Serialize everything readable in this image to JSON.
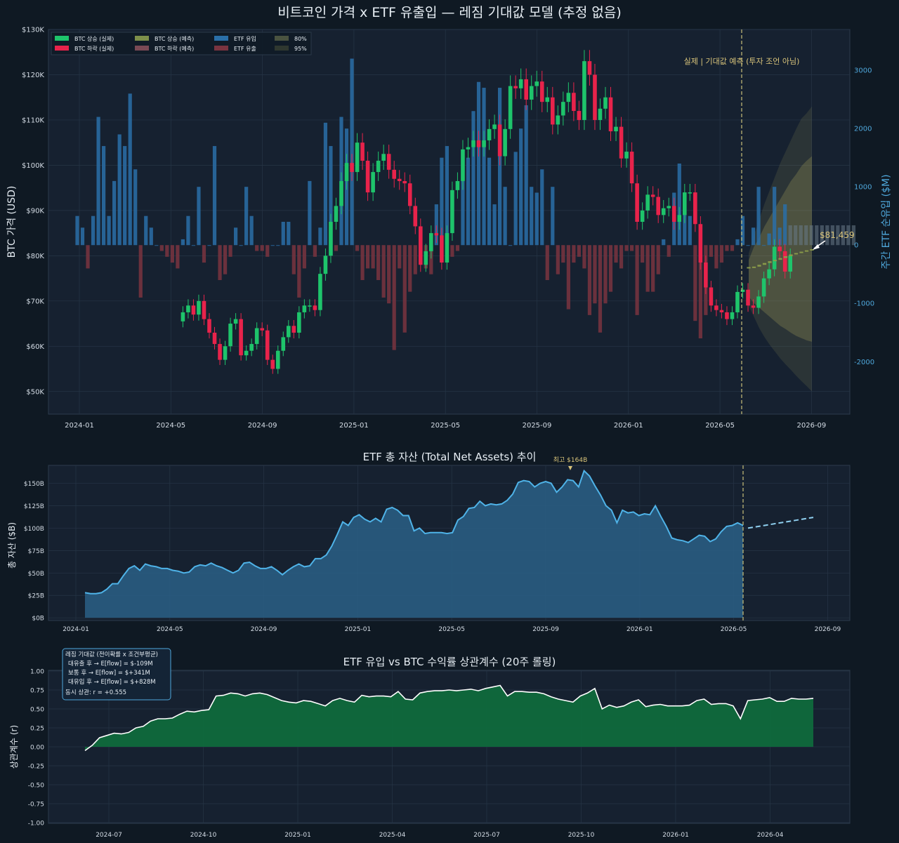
{
  "title": "비트코인 가격 x ETF 유출입 — 레짐 기대값 모델 (추정 없음)",
  "colors": {
    "background": "#0f1923",
    "panel": "#162130",
    "grid": "#263546",
    "up": "#1ec46b",
    "down": "#e8234b",
    "inflow": "#2a6fa8",
    "outflow": "#7a3440",
    "forecast": "#c9c064",
    "tna_line": "#4fb3e8",
    "tna_fill": "#2a5f86",
    "corr_fill": "#0f6a3c"
  },
  "chart_data": [
    {
      "type": "candlestick+bar",
      "ylabel": "BTC 가격 (USD)",
      "y2label": "주간 ETF 순유입 ($M)",
      "ylim": [
        45000,
        130000
      ],
      "y2lim": [
        -2900,
        3700
      ],
      "yticks": [
        "$50K",
        "$60K",
        "$70K",
        "$80K",
        "$90K",
        "$100K",
        "$110K",
        "$120K",
        "$130K"
      ],
      "y2ticks": [
        "-2000",
        "-1000",
        "0",
        "1000",
        "2000",
        "3000"
      ],
      "xticks": [
        "2024-01",
        "2024-05",
        "2024-09",
        "2025-01",
        "2025-05",
        "2025-09",
        "2026-01",
        "2026-05",
        "2026-09"
      ],
      "legend": {
        "position": "top-left",
        "items": [
          "BTC 상승 (실제)",
          "BTC 상승 (예측)",
          "ETF 유입",
          "80%",
          "BTC 하락 (실제)",
          "BTC 하락 (예측)",
          "ETF 유출",
          "95%"
        ]
      },
      "annotation": "실제 | 기대값 예측 (투자 조언 아님)",
      "forecast_end_label": "$81,459",
      "flows": [
        500,
        300,
        -400,
        500,
        2200,
        1700,
        500,
        1100,
        1900,
        1700,
        2600,
        1300,
        -900,
        500,
        300,
        0,
        -100,
        -200,
        -300,
        -400,
        100,
        500,
        0,
        1000,
        -300,
        0,
        1700,
        -600,
        -500,
        -200,
        300,
        0,
        1000,
        500,
        -100,
        -100,
        -200,
        0,
        0,
        400,
        400,
        -500,
        -900,
        -400,
        1100,
        -200,
        300,
        2100,
        1700,
        -100,
        2200,
        2000,
        3200,
        -100,
        -600,
        -400,
        -400,
        -600,
        -900,
        -1000,
        -1800,
        -400,
        -1500,
        -800,
        -500,
        200,
        -400,
        -500,
        700,
        1500,
        1700,
        -200,
        -100,
        1100,
        1500,
        2300,
        2800,
        2700,
        1500,
        700,
        2700,
        1000,
        0,
        1600,
        2000,
        2400,
        1000,
        900,
        1300,
        -600,
        1000,
        -500,
        -300,
        -1100,
        -300,
        -200,
        -400,
        -1200,
        -1000,
        -1500,
        -1000,
        -800,
        -300,
        -400,
        -100,
        -100,
        -1200,
        -300,
        -800,
        -800,
        -500,
        100,
        -200,
        900,
        1400,
        600,
        500,
        -1300,
        -1600,
        -1200,
        -200,
        -400,
        -300,
        -100,
        -100,
        100,
        500,
        0,
        300,
        1000,
        0,
        200,
        1000,
        300,
        700
      ],
      "candles_start_week": 20,
      "candles": [
        65500,
        67500,
        69000,
        67000,
        70000,
        66000,
        63000,
        60500,
        57000,
        60000,
        65000,
        66000,
        58000,
        59000,
        60500,
        64000,
        63500,
        57000,
        55000,
        59000,
        62000,
        64500,
        63000,
        67500,
        69000,
        69000,
        68000,
        76000,
        80000,
        87500,
        91000,
        96500,
        100500,
        98500,
        105000,
        101000,
        94000,
        98500,
        101000,
        102500,
        99000,
        97000,
        96500,
        96000,
        91000,
        86500,
        78000,
        81000,
        85000,
        84500,
        78500,
        85000,
        94500,
        96500,
        103500,
        104000,
        105500,
        104000,
        105500,
        108000,
        109000,
        102000,
        108000,
        117500,
        117000,
        119000,
        114500,
        117500,
        118500,
        114000,
        115000,
        109000,
        111000,
        114000,
        116000,
        112000,
        110000,
        123000,
        120000,
        110000,
        112500,
        115000,
        107500,
        108500,
        101500,
        103000,
        96000,
        87500,
        90000,
        93500,
        93000,
        89000,
        90500,
        91000,
        87500,
        89000,
        94000,
        94000,
        87000,
        78500,
        73000,
        69000,
        68000,
        67500,
        66000,
        67500,
        72000,
        72500,
        69000,
        68500,
        71000,
        75000,
        77000,
        82000,
        81000,
        76500,
        80000
      ],
      "forecast": [
        77500,
        77600,
        78000,
        78400,
        78800,
        79100,
        79500,
        79900,
        80300,
        80600,
        80900,
        81200,
        81459
      ],
      "band80": [
        [
          71000,
          79000
        ],
        [
          69500,
          82000
        ],
        [
          68500,
          84000
        ],
        [
          67500,
          86500
        ],
        [
          66500,
          88500
        ],
        [
          65500,
          90500
        ],
        [
          64500,
          92500
        ],
        [
          63800,
          94500
        ],
        [
          63000,
          96500
        ],
        [
          62300,
          98000
        ],
        [
          61800,
          99800
        ],
        [
          61300,
          101000
        ],
        [
          61000,
          102000
        ]
      ],
      "band95": [
        [
          69000,
          80500
        ],
        [
          66500,
          84500
        ],
        [
          64000,
          88000
        ],
        [
          62000,
          91500
        ],
        [
          60300,
          94500
        ],
        [
          58800,
          97500
        ],
        [
          57300,
          100500
        ],
        [
          56000,
          103000
        ],
        [
          54800,
          105500
        ],
        [
          53500,
          108000
        ],
        [
          52300,
          110300
        ],
        [
          51200,
          111500
        ],
        [
          50000,
          113000
        ]
      ]
    },
    {
      "type": "area",
      "title": "ETF 총 자산 (Total Net Assets) 추이",
      "ylabel": "총 자산 ($B)",
      "ylim": [
        -3,
        170
      ],
      "yticks": [
        "$0B",
        "$25B",
        "$50B",
        "$75B",
        "$100B",
        "$125B",
        "$150B"
      ],
      "xticks": [
        "2024-01",
        "2024-05",
        "2024-09",
        "2025-01",
        "2025-05",
        "2025-09",
        "2026-01",
        "2026-05",
        "2026-09"
      ],
      "peak_label": "최고 $164B",
      "values": [
        28,
        27,
        27,
        28,
        32,
        38,
        38,
        47,
        55,
        58,
        53,
        60,
        58,
        57,
        55,
        55,
        53,
        52,
        50,
        51,
        57,
        59,
        58,
        61,
        58,
        56,
        53,
        50,
        53,
        61,
        62,
        58,
        55,
        55,
        57,
        53,
        48,
        53,
        57,
        60,
        57,
        58,
        66,
        66,
        70,
        80,
        93,
        107,
        103,
        112,
        115,
        110,
        107,
        111,
        107,
        121,
        123,
        120,
        114,
        114,
        97,
        100,
        94,
        95,
        95,
        95,
        94,
        95,
        109,
        113,
        122,
        123,
        130,
        125,
        127,
        126,
        127,
        131,
        138,
        151,
        153,
        152,
        146,
        150,
        152,
        150,
        140,
        146,
        154,
        153,
        146,
        164,
        158,
        147,
        137,
        125,
        120,
        106,
        120,
        117,
        118,
        114,
        116,
        115,
        125,
        113,
        102,
        89,
        87,
        86,
        84,
        88,
        92,
        91,
        85,
        88,
        96,
        102,
        103,
        106,
        103
      ],
      "forecast": [
        100,
        112
      ]
    },
    {
      "type": "area",
      "title": "ETF 유입 vs BTC 수익률 상관계수 (20주 롤링)",
      "ylabel": "상관계수 (r)",
      "ylim": [
        -1.0,
        1.0
      ],
      "yticks": [
        "-1.00",
        "-0.75",
        "-0.50",
        "-0.25",
        "0.00",
        "0.25",
        "0.50",
        "0.75",
        "1.00"
      ],
      "xticks": [
        "2024-07",
        "2024-10",
        "2025-01",
        "2025-04",
        "2025-07",
        "2025-10",
        "2026-01",
        "2026-04"
      ],
      "infobox": [
        "레짐 기대값 (전이확률 x 조건부평균)",
        "대유출 후 → E[flow] = $-109M",
        "보통 후 → E[flow] = $+341M",
        "대유입 후 → E[flow] = $+828M",
        "동시 상관: r = +0.555"
      ],
      "values": [
        -0.05,
        0.02,
        0.12,
        0.15,
        0.18,
        0.17,
        0.19,
        0.25,
        0.27,
        0.34,
        0.37,
        0.37,
        0.38,
        0.43,
        0.47,
        0.46,
        0.48,
        0.49,
        0.67,
        0.68,
        0.71,
        0.7,
        0.67,
        0.7,
        0.71,
        0.69,
        0.65,
        0.61,
        0.59,
        0.58,
        0.61,
        0.6,
        0.57,
        0.54,
        0.61,
        0.64,
        0.61,
        0.59,
        0.68,
        0.66,
        0.67,
        0.67,
        0.66,
        0.73,
        0.63,
        0.62,
        0.71,
        0.73,
        0.74,
        0.74,
        0.75,
        0.74,
        0.75,
        0.76,
        0.74,
        0.77,
        0.79,
        0.81,
        0.67,
        0.73,
        0.73,
        0.72,
        0.72,
        0.7,
        0.66,
        0.63,
        0.61,
        0.59,
        0.67,
        0.71,
        0.77,
        0.5,
        0.55,
        0.52,
        0.54,
        0.59,
        0.62,
        0.53,
        0.55,
        0.56,
        0.54,
        0.54,
        0.54,
        0.55,
        0.61,
        0.63,
        0.56,
        0.57,
        0.57,
        0.54,
        0.37,
        0.61,
        0.62,
        0.63,
        0.65,
        0.6,
        0.6,
        0.64,
        0.63,
        0.63,
        0.64
      ]
    }
  ]
}
